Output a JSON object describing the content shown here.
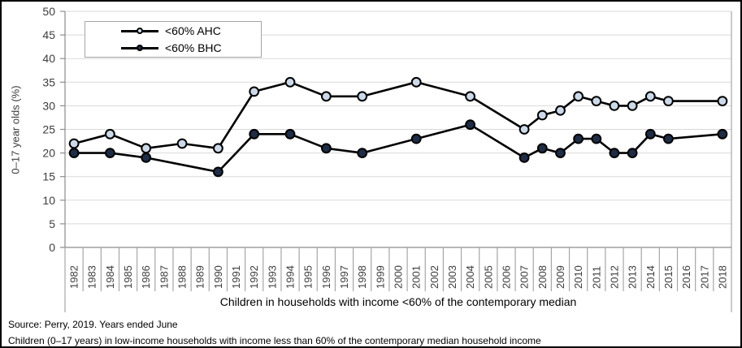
{
  "chart_data": {
    "type": "line",
    "title": "",
    "xlabel": "Children in households with income <60% of the contemporary median",
    "ylabel": "0–17 year olds (%)",
    "ylim": [
      0,
      50
    ],
    "ytick_step": 5,
    "grid": "horizontal",
    "legend_position": "top-left-inside",
    "x_categories": [
      1982,
      1983,
      1984,
      1985,
      1986,
      1987,
      1988,
      1989,
      1990,
      1991,
      1992,
      1993,
      1994,
      1995,
      1996,
      1997,
      1998,
      1999,
      2000,
      2001,
      2002,
      2003,
      2004,
      2005,
      2006,
      2007,
      2008,
      2009,
      2010,
      2011,
      2012,
      2013,
      2014,
      2015,
      2016,
      2017,
      2018
    ],
    "series": [
      {
        "name": "<60% AHC",
        "line_color": "#000000",
        "marker_color": "#ccd9e9",
        "points": [
          [
            1982,
            22
          ],
          [
            1984,
            24
          ],
          [
            1986,
            21
          ],
          [
            1988,
            22
          ],
          [
            1990,
            21
          ],
          [
            1992,
            33
          ],
          [
            1994,
            35
          ],
          [
            1996,
            32
          ],
          [
            1998,
            32
          ],
          [
            2001,
            35
          ],
          [
            2004,
            32
          ],
          [
            2007,
            25
          ],
          [
            2008,
            28
          ],
          [
            2009,
            29
          ],
          [
            2010,
            32
          ],
          [
            2011,
            31
          ],
          [
            2012,
            30
          ],
          [
            2013,
            30
          ],
          [
            2014,
            32
          ],
          [
            2015,
            31
          ],
          [
            2018,
            31
          ]
        ]
      },
      {
        "name": "<60% BHC",
        "line_color": "#000000",
        "marker_color": "#1f2c45",
        "points": [
          [
            1982,
            20
          ],
          [
            1984,
            20
          ],
          [
            1986,
            19
          ],
          [
            1990,
            16
          ],
          [
            1992,
            24
          ],
          [
            1994,
            24
          ],
          [
            1996,
            21
          ],
          [
            1998,
            20
          ],
          [
            2001,
            23
          ],
          [
            2004,
            26
          ],
          [
            2007,
            19
          ],
          [
            2008,
            21
          ],
          [
            2009,
            20
          ],
          [
            2010,
            23
          ],
          [
            2011,
            23
          ],
          [
            2012,
            20
          ],
          [
            2013,
            20
          ],
          [
            2014,
            24
          ],
          [
            2015,
            23
          ],
          [
            2018,
            24
          ]
        ]
      }
    ]
  },
  "footer": {
    "source_line": "Source: Perry, 2019. Years ended June",
    "description_line": "Children (0–17 years) in low-income households with income less than 60% of the contemporary median household income"
  },
  "colors": {
    "gridline": "#d9d9d9",
    "axis": "#8c8c8c",
    "separator": "#a6a6a6",
    "tick_label": "#3d3d3d",
    "series_line": "#000000",
    "ahc_marker": "#ccd9e9",
    "bhc_marker": "#1f2c45",
    "legend_border": "#a6a6a6",
    "outer_border": "#000000"
  }
}
